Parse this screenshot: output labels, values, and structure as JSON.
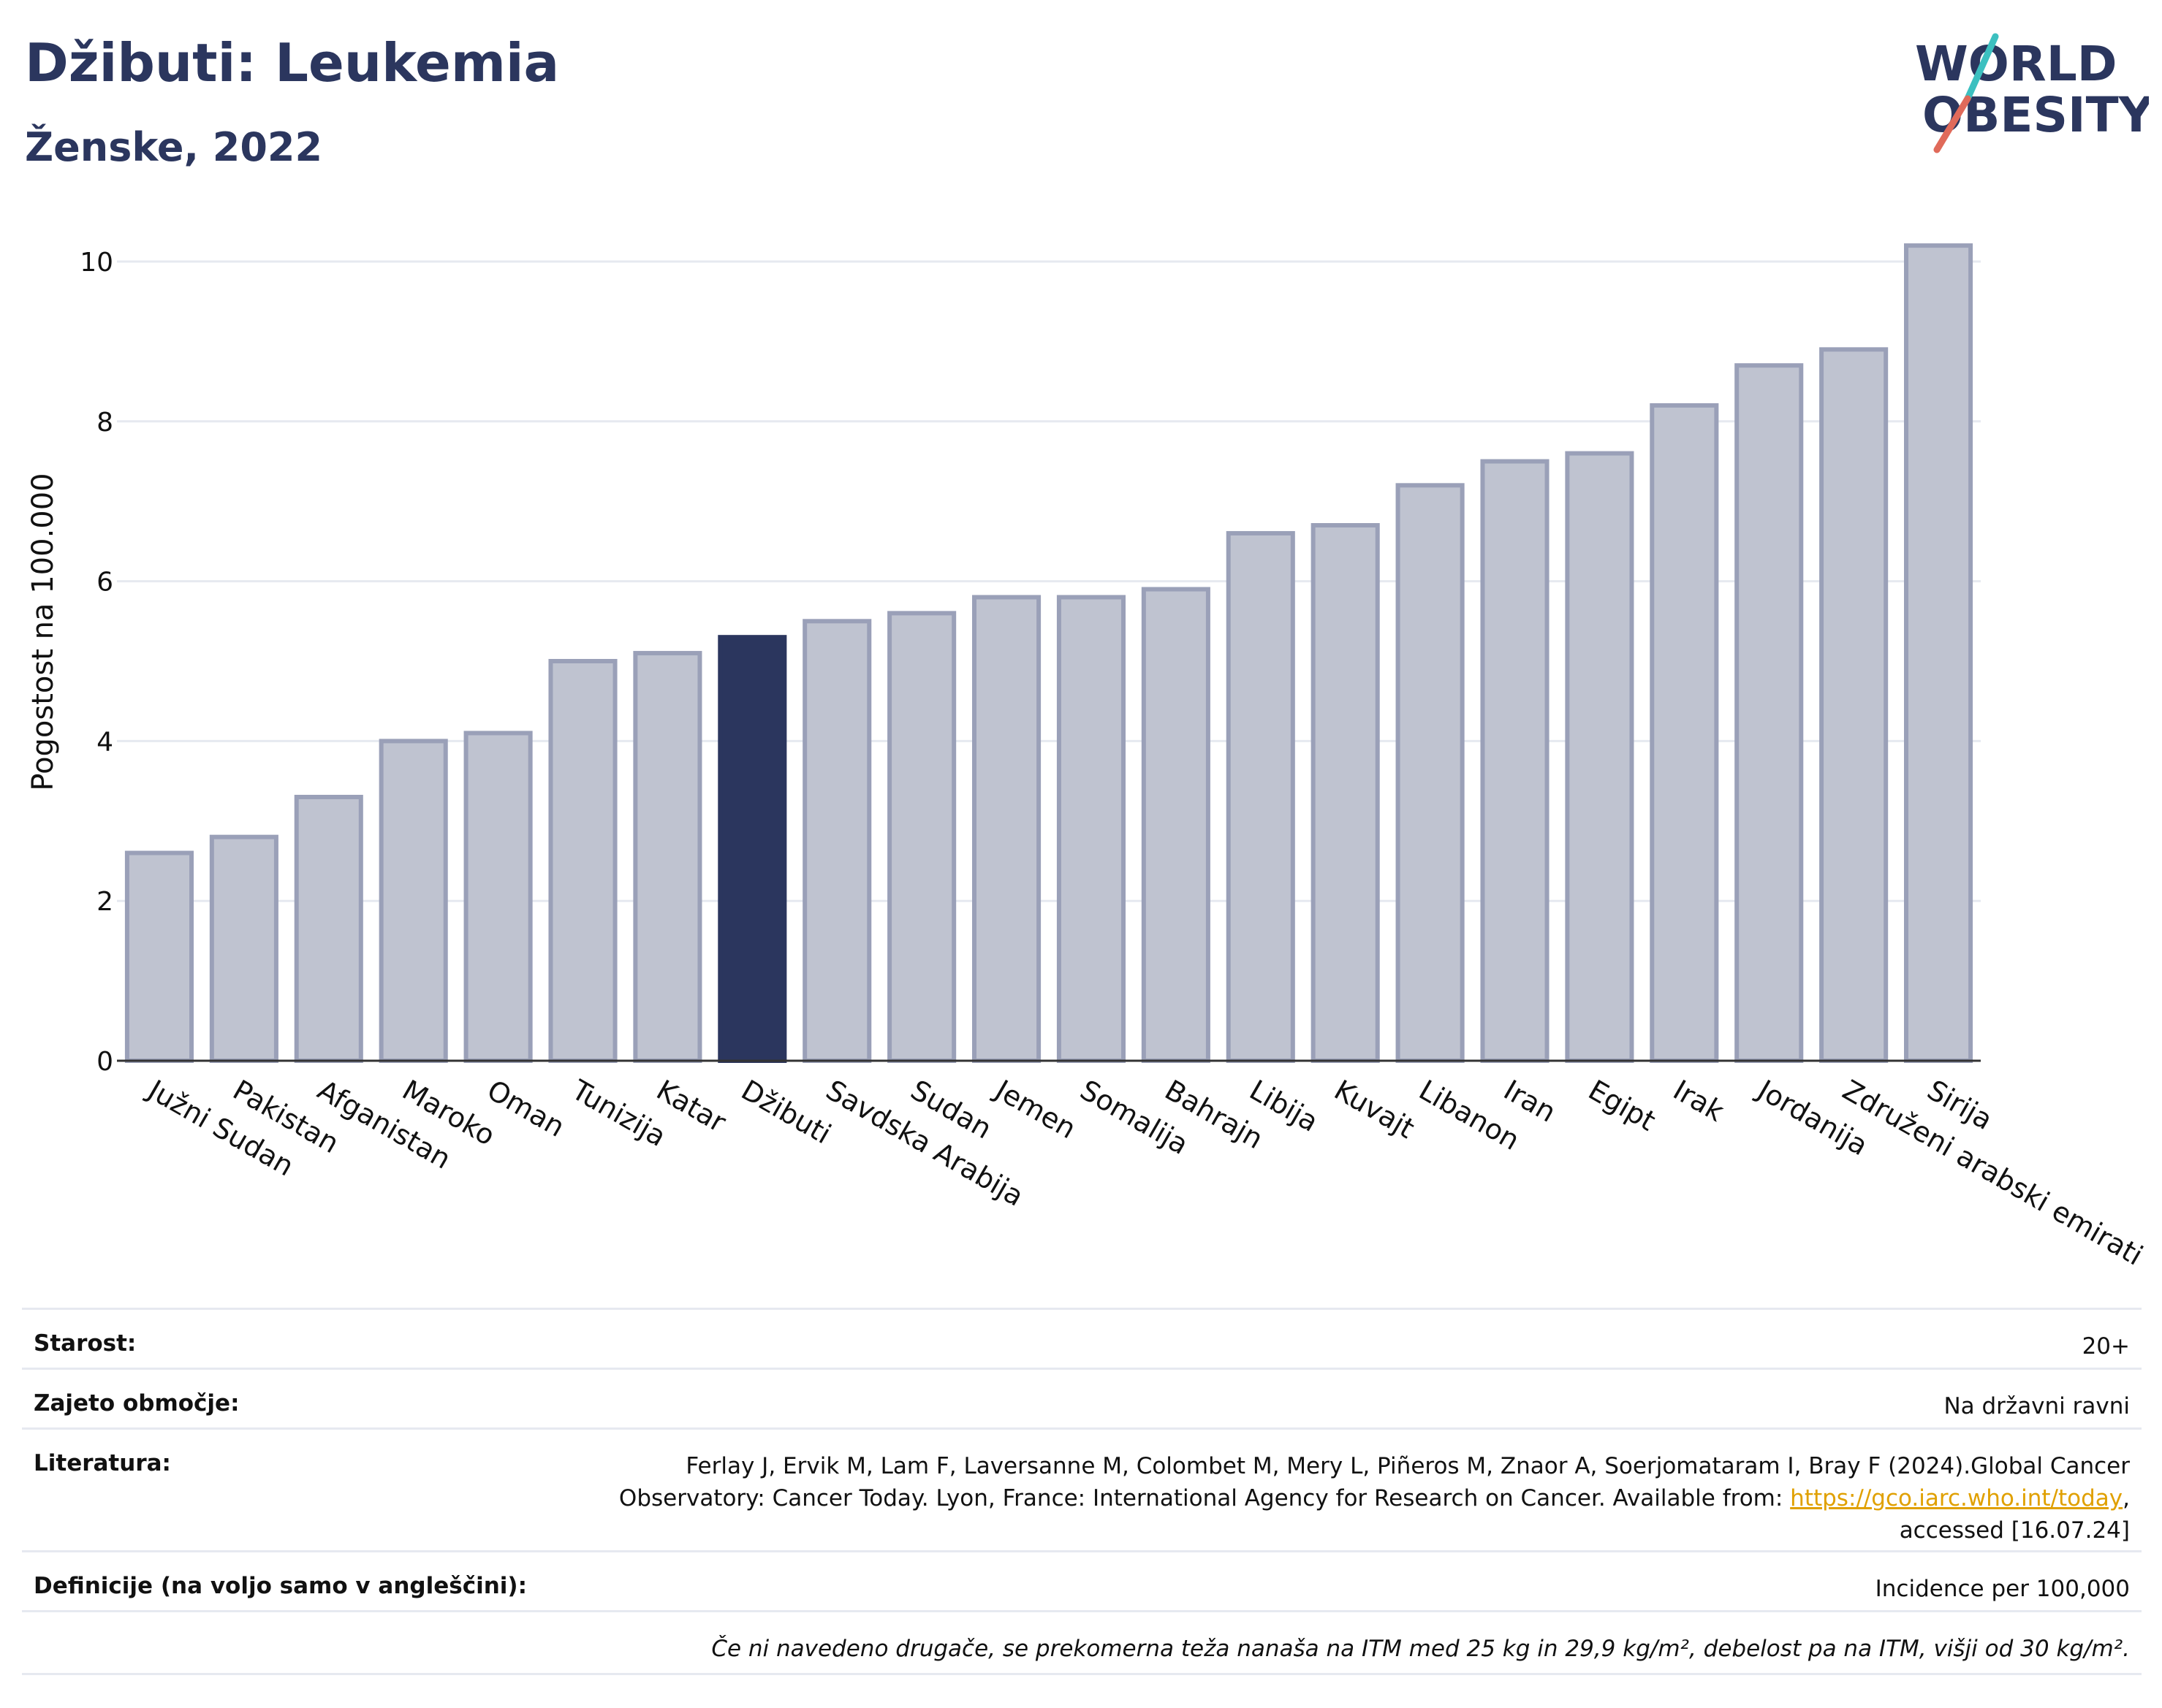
{
  "header": {
    "title": "Džibuti: Leukemia",
    "subtitle": "Ženske, 2022"
  },
  "logo": {
    "line1": "WORLD",
    "line2": "OBESITY",
    "text_color": "#2b365e",
    "slash_colors": [
      "#3cc0c0",
      "#e06a5a"
    ]
  },
  "chart_data": {
    "type": "bar",
    "title": "Džibuti: Leukemia",
    "subtitle": "Ženske, 2022",
    "ylabel": "Pogostost na 100.000",
    "xlabel": "",
    "ylim": [
      0,
      10.5
    ],
    "yticks": [
      0,
      2,
      4,
      6,
      8,
      10
    ],
    "grid": true,
    "highlight": "Džibuti",
    "colors": {
      "bar": "#bfc3d0",
      "bar_border": "#9aa0b8",
      "highlight": "#2b365e",
      "grid": "#e6e9f0",
      "axis": "#333333"
    },
    "categories": [
      "Južni Sudan",
      "Pakistan",
      "Afganistan",
      "Maroko",
      "Oman",
      "Tunizija",
      "Katar",
      "Džibuti",
      "Savdska Arabija",
      "Sudan",
      "Jemen",
      "Somalija",
      "Bahrajn",
      "Libija",
      "Kuvajt",
      "Libanon",
      "Iran",
      "Egipt",
      "Irak",
      "Jordanija",
      "Združeni arabski emirati",
      "Sirija"
    ],
    "values": [
      2.6,
      2.8,
      3.3,
      4.0,
      4.1,
      5.0,
      5.1,
      5.3,
      5.5,
      5.6,
      5.8,
      5.8,
      5.9,
      6.6,
      6.7,
      7.2,
      7.5,
      7.6,
      8.2,
      8.7,
      8.9,
      10.2
    ]
  },
  "info": {
    "age_label": "Starost:",
    "age_value": "20+",
    "coverage_label": "Zajeto območje:",
    "coverage_value": "Na državni ravni",
    "references_label": "Literatura:",
    "references_line1": "Ferlay J, Ervik M, Lam F, Laversanne M, Colombet M, Mery L, Piñeros M, Znaor A, Soerjomataram I, Bray F (2024).Global Cancer",
    "references_line2_pre": "Observatory: Cancer Today. Lyon, France: International Agency for Research on Cancer. Available from: ",
    "references_link": "https://gco.iarc.who.int/today",
    "references_line2_post": ",",
    "references_line3": "accessed [16.07.24]",
    "definitions_label": "Definicije (na voljo samo v angleščini):",
    "definitions_value": "Incidence per 100,000",
    "note": "Če ni navedeno drugače, se prekomerna teža nanaša na ITM med 25 kg in 29,9 kg/m², debelost pa na ITM, višji od 30 kg/m²."
  }
}
